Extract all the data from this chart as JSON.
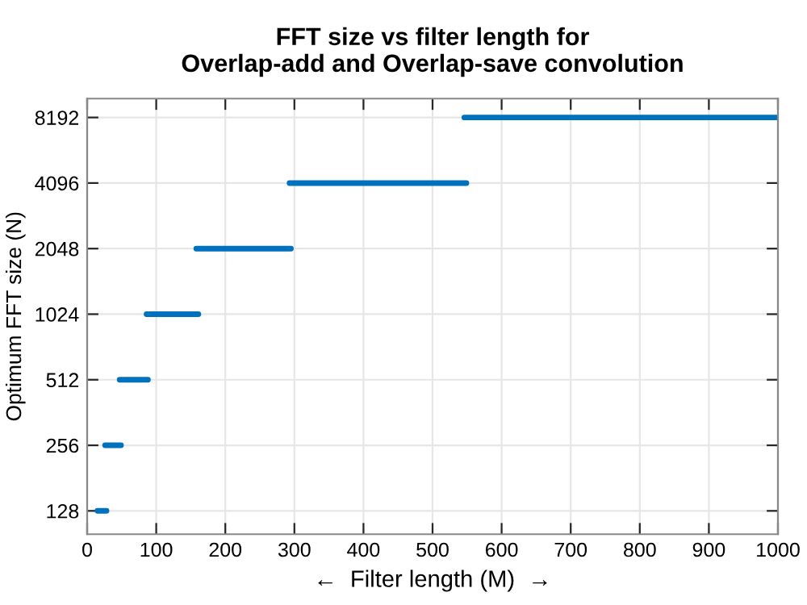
{
  "chart_data": {
    "type": "line",
    "title": "FFT size vs filter length for\nOverlap-add and Overlap-save convolution",
    "xlabel": "←  Filter length (M)  →",
    "ylabel": "Optimum FFT size (N)",
    "series": [
      {
        "x": [
          15,
          28
        ],
        "values": [
          128,
          128
        ],
        "color": "#0072bd"
      },
      {
        "x": [
          26,
          49
        ],
        "values": [
          256,
          256
        ],
        "color": "#0072bd"
      },
      {
        "x": [
          47,
          88
        ],
        "values": [
          512,
          512
        ],
        "color": "#0072bd"
      },
      {
        "x": [
          86,
          161
        ],
        "values": [
          1024,
          1024
        ],
        "color": "#0072bd"
      },
      {
        "x": [
          158,
          295
        ],
        "values": [
          2048,
          2048
        ],
        "color": "#0072bd"
      },
      {
        "x": [
          293,
          549
        ],
        "values": [
          4096,
          4096
        ],
        "color": "#0072bd"
      },
      {
        "x": [
          546,
          1000
        ],
        "values": [
          8192,
          8192
        ],
        "color": "#0072bd"
      }
    ],
    "log": "y",
    "xlim": [
      0,
      1000
    ],
    "xticks": [
      0,
      100,
      200,
      300,
      400,
      500,
      600,
      700,
      800,
      900,
      1000
    ],
    "ylim": [
      100,
      10000
    ],
    "yticks": [
      128,
      256,
      512,
      1024,
      2048,
      4096,
      8192
    ],
    "grid": true,
    "marker": "none",
    "line_style": "solid"
  }
}
